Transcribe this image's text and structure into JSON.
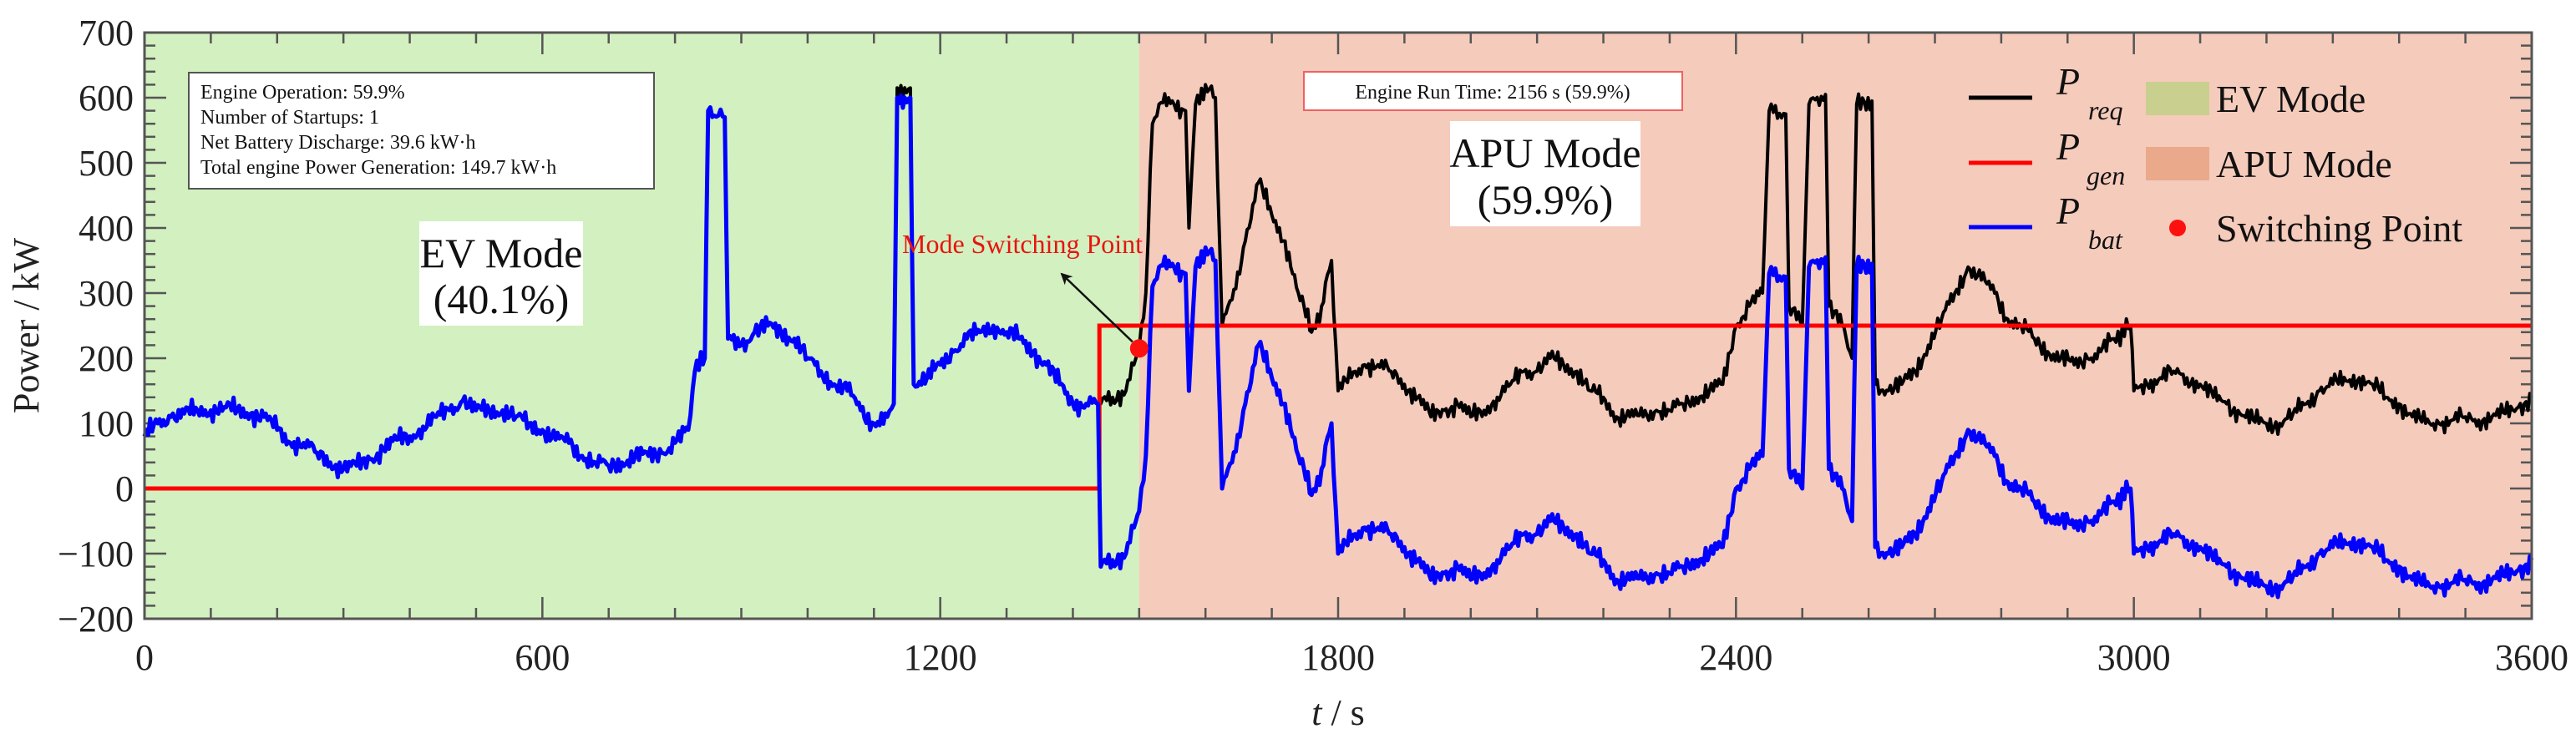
{
  "chart_data": {
    "type": "line",
    "xlabel_italic": "t",
    "xlabel_unit": " / s",
    "ylabel": "Power / kW",
    "xlim": [
      0,
      3600
    ],
    "ylim": [
      -200,
      700
    ],
    "x_ticks": [
      "0",
      "600",
      "1200",
      "1800",
      "2400",
      "3000",
      "3600"
    ],
    "y_ticks": [
      "−200",
      "−100",
      "0",
      "100",
      "200",
      "300",
      "400",
      "500",
      "600",
      "700"
    ],
    "x_tick_values": [
      0,
      600,
      1200,
      1800,
      2400,
      3000,
      3600
    ],
    "y_tick_values": [
      -200,
      -100,
      0,
      100,
      200,
      300,
      400,
      500,
      600,
      700
    ],
    "grid": false,
    "regions": [
      {
        "name": "EV Mode",
        "from": 0,
        "to": 1500,
        "color": "#d2f0c0"
      },
      {
        "name": "APU Mode",
        "from": 1500,
        "to": 3600,
        "color": "#f5cbbb"
      }
    ],
    "t": [
      0,
      20,
      40,
      60,
      80,
      100,
      120,
      140,
      160,
      180,
      200,
      220,
      240,
      260,
      280,
      300,
      320,
      340,
      360,
      380,
      400,
      420,
      440,
      460,
      480,
      500,
      520,
      540,
      560,
      580,
      600,
      620,
      640,
      660,
      680,
      700,
      720,
      740,
      760,
      780,
      800,
      820,
      830,
      845,
      850,
      875,
      880,
      900,
      920,
      940,
      960,
      980,
      1000,
      1020,
      1040,
      1060,
      1080,
      1100,
      1120,
      1130,
      1135,
      1155,
      1160,
      1180,
      1200,
      1220,
      1240,
      1260,
      1280,
      1300,
      1320,
      1340,
      1360,
      1380,
      1400,
      1420,
      1438,
      1442,
      1460,
      1480,
      1495,
      1500,
      1510,
      1520,
      1530,
      1550,
      1570,
      1575,
      1585,
      1600,
      1615,
      1625,
      1640,
      1660,
      1680,
      1700,
      1720,
      1740,
      1760,
      1775,
      1790,
      1800,
      1820,
      1840,
      1860,
      1880,
      1900,
      1920,
      1940,
      1960,
      1980,
      2000,
      2020,
      2040,
      2060,
      2080,
      2100,
      2120,
      2140,
      2160,
      2180,
      2200,
      2220,
      2240,
      2260,
      2280,
      2300,
      2320,
      2340,
      2360,
      2380,
      2400,
      2420,
      2440,
      2450,
      2475,
      2480,
      2500,
      2510,
      2535,
      2540,
      2560,
      2575,
      2582,
      2605,
      2610,
      2630,
      2650,
      2670,
      2690,
      2710,
      2730,
      2750,
      2770,
      2790,
      2810,
      2830,
      2850,
      2870,
      2890,
      2910,
      2930,
      2950,
      2970,
      2995,
      3000,
      3020,
      3040,
      3060,
      3080,
      3100,
      3120,
      3140,
      3160,
      3180,
      3200,
      3220,
      3240,
      3260,
      3280,
      3300,
      3320,
      3340,
      3360,
      3380,
      3400,
      3420,
      3440,
      3460,
      3480,
      3500,
      3520,
      3540,
      3560,
      3580,
      3600
    ],
    "series": [
      {
        "name": "P_req",
        "symbol": "P",
        "sub": "req",
        "color": "#000000",
        "values": [
          80,
          100,
          110,
          115,
          120,
          120,
          125,
          120,
          115,
          110,
          90,
          70,
          70,
          55,
          40,
          30,
          35,
          45,
          60,
          75,
          80,
          95,
          110,
          120,
          135,
          120,
          120,
          120,
          110,
          100,
          90,
          75,
          70,
          50,
          40,
          35,
          40,
          50,
          50,
          55,
          70,
          90,
          180,
          200,
          580,
          570,
          230,
          220,
          240,
          250,
          240,
          230,
          200,
          180,
          160,
          150,
          120,
          100,
          110,
          130,
          615,
          615,
          160,
          170,
          190,
          210,
          230,
          240,
          250,
          240,
          230,
          210,
          190,
          160,
          130,
          130,
          130,
          130,
          140,
          150,
          200,
          215,
          300,
          560,
          590,
          595,
          580,
          400,
          590,
          620,
          600,
          250,
          290,
          380,
          470,
          420,
          380,
          300,
          240,
          280,
          350,
          150,
          170,
          190,
          190,
          180,
          160,
          140,
          110,
          120,
          130,
          110,
          120,
          140,
          160,
          180,
          180,
          200,
          190,
          180,
          150,
          140,
          110,
          110,
          110,
          120,
          120,
          130,
          140,
          150,
          160,
          250,
          280,
          300,
          580,
          575,
          280,
          250,
          590,
          605,
          280,
          250,
          200,
          590,
          595,
          160,
          150,
          160,
          180,
          220,
          260,
          300,
          340,
          320,
          300,
          260,
          250,
          230,
          210,
          200,
          190,
          200,
          210,
          230,
          250,
          150,
          160,
          170,
          180,
          170,
          160,
          140,
          130,
          115,
          105,
          100,
          100,
          115,
          130,
          150,
          160,
          165,
          170,
          160,
          140,
          130,
          110,
          100,
          100,
          105,
          110,
          105,
          110,
          115,
          125,
          140
        ]
      },
      {
        "name": "P_gen",
        "symbol": "P",
        "sub": "gen",
        "color": "#ff0000",
        "steps": [
          [
            0,
            0
          ],
          [
            1440,
            0
          ],
          [
            1440,
            250
          ],
          [
            3600,
            250
          ]
        ]
      },
      {
        "name": "P_bat",
        "symbol": "P",
        "sub": "bat",
        "color": "#0000ff",
        "values": [
          80,
          100,
          110,
          115,
          120,
          120,
          125,
          120,
          115,
          110,
          90,
          70,
          70,
          55,
          40,
          30,
          35,
          45,
          60,
          75,
          80,
          95,
          110,
          120,
          135,
          120,
          120,
          120,
          110,
          100,
          90,
          75,
          70,
          50,
          40,
          35,
          40,
          50,
          50,
          55,
          70,
          90,
          180,
          200,
          580,
          570,
          230,
          220,
          240,
          250,
          240,
          230,
          200,
          180,
          160,
          150,
          120,
          100,
          110,
          130,
          600,
          600,
          160,
          170,
          190,
          210,
          230,
          240,
          250,
          240,
          230,
          210,
          190,
          160,
          130,
          130,
          130,
          -120,
          -110,
          -100,
          -50,
          -35,
          50,
          310,
          340,
          345,
          330,
          150,
          340,
          370,
          350,
          0,
          40,
          130,
          220,
          170,
          130,
          50,
          -10,
          30,
          100,
          -100,
          -80,
          -60,
          -60,
          -70,
          -90,
          -110,
          -140,
          -130,
          -120,
          -140,
          -130,
          -110,
          -90,
          -70,
          -70,
          -50,
          -60,
          -70,
          -100,
          -110,
          -140,
          -140,
          -140,
          -130,
          -130,
          -120,
          -110,
          -100,
          -90,
          0,
          30,
          50,
          330,
          325,
          30,
          0,
          340,
          355,
          30,
          0,
          -50,
          340,
          345,
          -90,
          -100,
          -90,
          -70,
          -30,
          10,
          50,
          90,
          70,
          50,
          10,
          0,
          -20,
          -40,
          -50,
          -60,
          -50,
          -40,
          -20,
          0,
          -100,
          -90,
          -80,
          -70,
          -80,
          -90,
          -110,
          -120,
          -135,
          -145,
          -150,
          -150,
          -135,
          -120,
          -100,
          -90,
          -85,
          -80,
          -90,
          -110,
          -120,
          -140,
          -150,
          -150,
          -145,
          -140,
          -145,
          -140,
          -135,
          -125,
          -110
        ]
      }
    ],
    "switching_point": {
      "t": 1500,
      "value": 215,
      "color": "#ff1010"
    },
    "annotations": {
      "info_box": [
        "Engine Operation: 59.9%",
        "Number of Startups: 1",
        "Net Battery Discharge: 39.6 kW·h",
        "Total engine Power Generation: 149.7 kW·h"
      ],
      "ev_mode_label": [
        "EV Mode",
        "(40.1%)"
      ],
      "apu_mode_label": [
        "APU Mode",
        "(59.9%)"
      ],
      "engine_run_time": "Engine Run Time: 2156 s (59.9%)",
      "switching_label": "Mode Switching Point"
    },
    "legend": {
      "placement": "top-right",
      "entries": [
        {
          "symbol": "P",
          "sub": "req",
          "color": "#000000",
          "kind": "line"
        },
        {
          "symbol": "P",
          "sub": "gen",
          "color": "#ff0000",
          "kind": "line"
        },
        {
          "symbol": "P",
          "sub": "bat",
          "color": "#0000ff",
          "kind": "line"
        },
        {
          "label": "EV Mode",
          "color": "#c9cf8f",
          "kind": "patch"
        },
        {
          "label": "APU Mode",
          "color": "#eba98b",
          "kind": "patch"
        },
        {
          "label": "Switching Point",
          "color": "#ff1010",
          "kind": "marker"
        }
      ]
    }
  }
}
